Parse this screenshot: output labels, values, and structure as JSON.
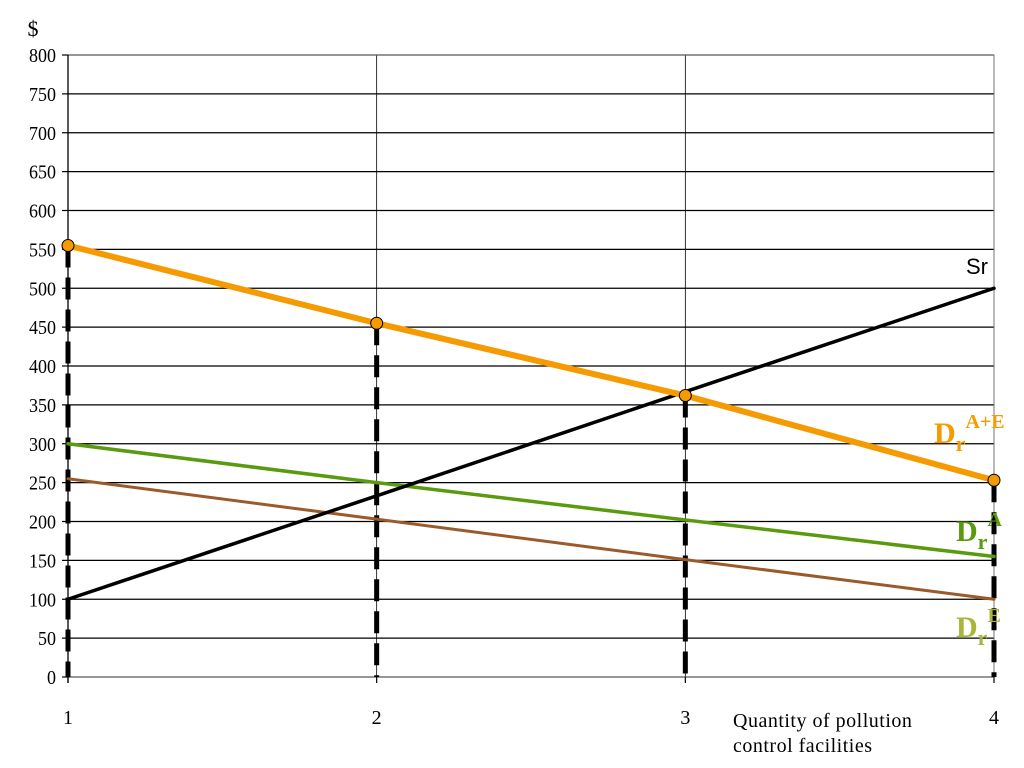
{
  "chart_data": {
    "type": "line",
    "ylabel": "$",
    "xlabel_lines": [
      "Quantity of pollution",
      "control facilities"
    ],
    "x": [
      1,
      2,
      3,
      4
    ],
    "xlim": [
      1,
      4
    ],
    "ylim": [
      0,
      800
    ],
    "y_ticks": [
      0,
      50,
      100,
      150,
      200,
      250,
      300,
      350,
      400,
      450,
      500,
      550,
      600,
      650,
      700,
      750,
      800
    ],
    "x_ticks": [
      1,
      2,
      3,
      4
    ],
    "grid": "horizontal every 50, vertical at each x",
    "series": [
      {
        "name": "Sr",
        "color": "#000000",
        "values": [
          100,
          233,
          367,
          500
        ],
        "markers": false
      },
      {
        "name": "Dr A+E",
        "label_main": "D",
        "label_sub": "r",
        "label_sup": "A+E",
        "color": "#f59a00",
        "values": [
          555,
          455,
          362,
          253
        ],
        "markers": true
      },
      {
        "name": "Dr A",
        "label_main": "D",
        "label_sub": "r",
        "label_sup": "A",
        "color": "#5a9a0e",
        "values": [
          300,
          250,
          202,
          155
        ],
        "markers": false
      },
      {
        "name": "Dr E",
        "label_main": "D",
        "label_sub": "r",
        "label_sup": "E",
        "color": "#9a5a2a",
        "label_color": "#a9b53a",
        "values": [
          255,
          203,
          151,
          100
        ],
        "markers": false
      }
    ],
    "dashed_verticals": [
      {
        "x": 1,
        "y_top": 555
      },
      {
        "x": 2,
        "y_top": 455
      },
      {
        "x": 3,
        "y_top": 362
      },
      {
        "x": 4,
        "y_top": 253
      }
    ]
  }
}
